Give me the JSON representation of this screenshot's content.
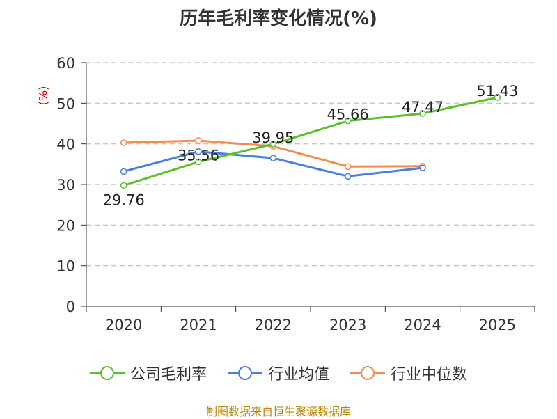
{
  "title": "历年毛利率变化情况(%)",
  "source": "制图数据来自恒生聚源数据库",
  "chart_data": {
    "type": "line",
    "title": "历年毛利率变化情况(%)",
    "ylabel": "(%)",
    "xlabel": "",
    "categories": [
      "2020",
      "2021",
      "2022",
      "2023",
      "2024",
      "2025"
    ],
    "ylim": [
      0,
      60
    ],
    "yticks": [
      0,
      10,
      20,
      30,
      40,
      50,
      60
    ],
    "grid": true,
    "legend_position": "bottom",
    "series": [
      {
        "name": "公司毛利率",
        "color": "#5ac02a",
        "values": [
          29.76,
          35.56,
          39.95,
          45.66,
          47.47,
          51.43
        ],
        "labels": [
          "29.76",
          "35.56",
          "39.95",
          "45.66",
          "47.47",
          "51.43"
        ]
      },
      {
        "name": "行业均值",
        "color": "#4a7fdc",
        "values": [
          33.2,
          38.1,
          36.5,
          32.0,
          34.1,
          null
        ]
      },
      {
        "name": "行业中位数",
        "color": "#f28c55",
        "values": [
          40.3,
          40.8,
          39.4,
          34.4,
          34.5,
          null
        ]
      }
    ]
  }
}
